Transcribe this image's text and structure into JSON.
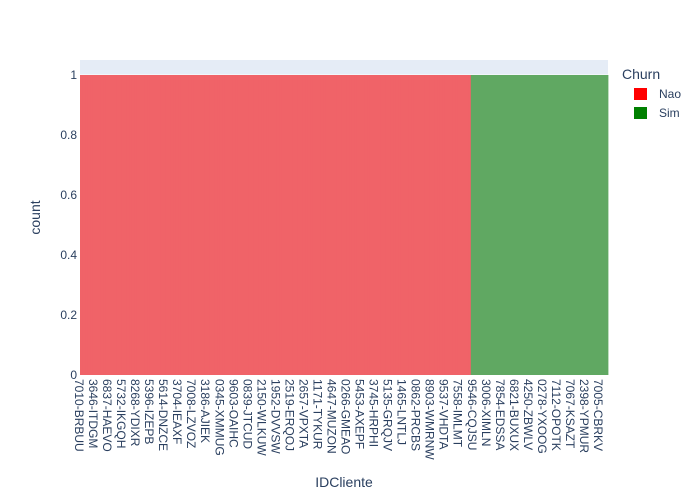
{
  "chart_data": {
    "type": "bar",
    "title": "",
    "xlabel": "IDCliente",
    "ylabel": "count",
    "ylim": [
      0,
      1.05
    ],
    "yticks": [
      0,
      0.2,
      0.4,
      0.6,
      0.8,
      1
    ],
    "ytick_labels": [
      "0",
      "0.2",
      "0.4",
      "0.6",
      "0.8",
      "1"
    ],
    "grid": true,
    "legend_position": "top-right",
    "legend_title": "Churn",
    "x_tick_labels": [
      "7010-BRBUU",
      "3646-ITDGM",
      "6837-HAEVO",
      "5732-IKGQH",
      "8268-YDIXR",
      "5396-IZEPB",
      "5614-DNZCE",
      "3704-IEAXF",
      "7008-LZVOZ",
      "3186-AJIEK",
      "0345-XMMUG",
      "9603-OAIHC",
      "0839-JTCUD",
      "2150-WLKUW",
      "1952-DVVSW",
      "2519-ERQOJ",
      "2657-VPXTA",
      "1171-TYKUR",
      "4647-MUZON",
      "0266-GMEAO",
      "5453-AXEPF",
      "3745-HRPHI",
      "5135-GRQJV",
      "1465-LNTLJ",
      "0862-PRCBS",
      "8903-WMRNW",
      "9537-VHDTA",
      "7558-IMLMT",
      "9546-CQJSU",
      "3006-XIMLN",
      "7854-EDSSA",
      "6821-BUXUX",
      "4250-ZBWLV",
      "0278-YXOOG",
      "7112-OPOTK",
      "7067-KSAZT",
      "2398-YPMUR",
      "7005-CBRKV"
    ],
    "x_tick_clean": [
      "7010-BRBUU",
      "3646-ITDGM",
      "6837-HAEVO",
      "5732-IKGQH",
      "8268-YDIXR",
      "5396-IZEPB",
      "5614-DNZCE",
      "3704-IEAXF",
      "7008-LZVOZ",
      "3186-AJIEK",
      "0345-XMMUG",
      "9603-OAIHC",
      "0839-JTCUD",
      "2150-WLKUW",
      "1952-DVVSW",
      "2519-ERQOJ",
      "2657-VPXTA",
      "1171-TYKUR",
      "4647-MUZON",
      "0266-GMEAO",
      "5453-AXEPF",
      "3745-HRPHI",
      "5135-GRQJV",
      "1465-LNTLJ",
      "0862-PRCBS",
      "8903-WMRNW",
      "9537-VHDTA",
      "7558-IMLMT",
      "9546-CQJSU",
      "3006-XIMLN",
      "7854-EDSSA",
      "6821-BUXUX",
      "4250-ZBWLV",
      "0278-YXOOG",
      "7112-OPOTK",
      "7067-KSAZT",
      "2398-YPMUR",
      "7005-CBRKV"
    ],
    "series": [
      {
        "name": "Nao",
        "color": "#ff0000",
        "bar_color": "#f06368",
        "category_count": 151,
        "value": 1
      },
      {
        "name": "Sim",
        "color": "#008000",
        "bar_color": "#60a862",
        "category_count": 53,
        "value": 1
      }
    ]
  }
}
